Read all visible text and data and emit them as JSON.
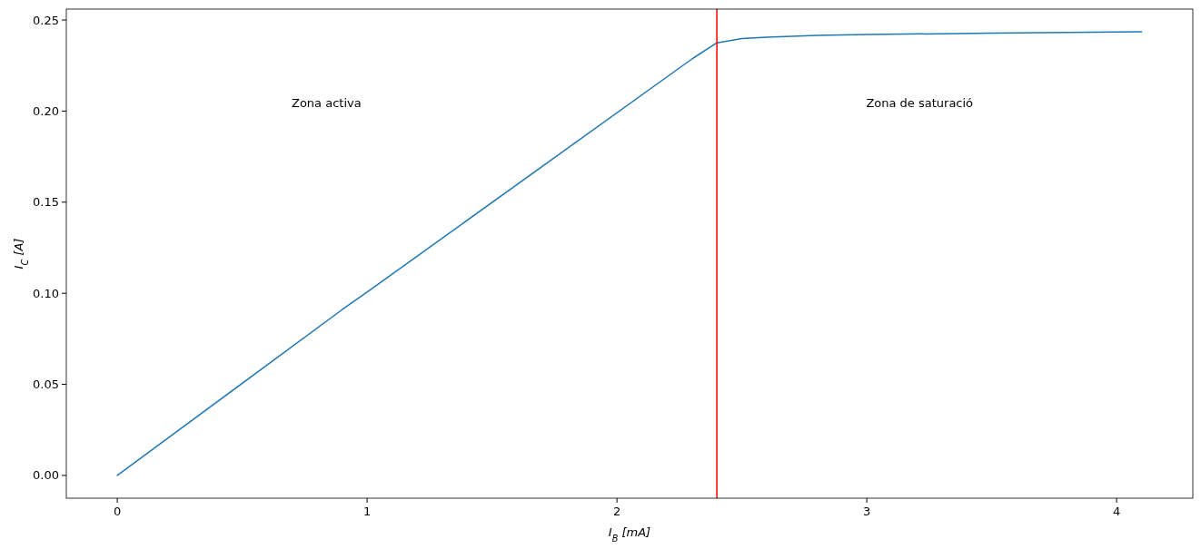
{
  "chart_data": {
    "type": "line",
    "xlabel": "I$_{B}$ [mA]",
    "ylabel": "I$_{C}$ [A]",
    "x": [
      0,
      0.9,
      1.0,
      2.3,
      2.4,
      2.5,
      2.6,
      2.7,
      2.8,
      3.0,
      3.5,
      4.1
    ],
    "series": [
      {
        "color": "#1f77b4",
        "values": [
          0,
          0.091,
          0.1006,
          0.2286,
          0.2375,
          0.2398,
          0.2405,
          0.241,
          0.2415,
          0.242,
          0.2428,
          0.2435
        ]
      }
    ],
    "xlim": [
      -0.204,
      4.305
    ],
    "ylim": [
      -0.0125,
      0.256
    ],
    "xticks": [
      0,
      1,
      2,
      3,
      4
    ],
    "yticks": [
      {
        "value": 0,
        "label": "0.00"
      },
      {
        "value": 0.05,
        "label": "0.05"
      },
      {
        "value": 0.1,
        "label": "0.10"
      },
      {
        "value": 0.15,
        "label": "0.15"
      },
      {
        "value": 0.2,
        "label": "0.20"
      },
      {
        "value": 0.25,
        "label": "0.25"
      }
    ],
    "ref_lines": [
      {
        "axis": "x",
        "value": 2.4,
        "color": "#ff0000"
      }
    ],
    "annotations": [
      "Zona activa",
      "Zona de saturació"
    ],
    "grid": false,
    "marker": "none",
    "line_style": "solid"
  }
}
